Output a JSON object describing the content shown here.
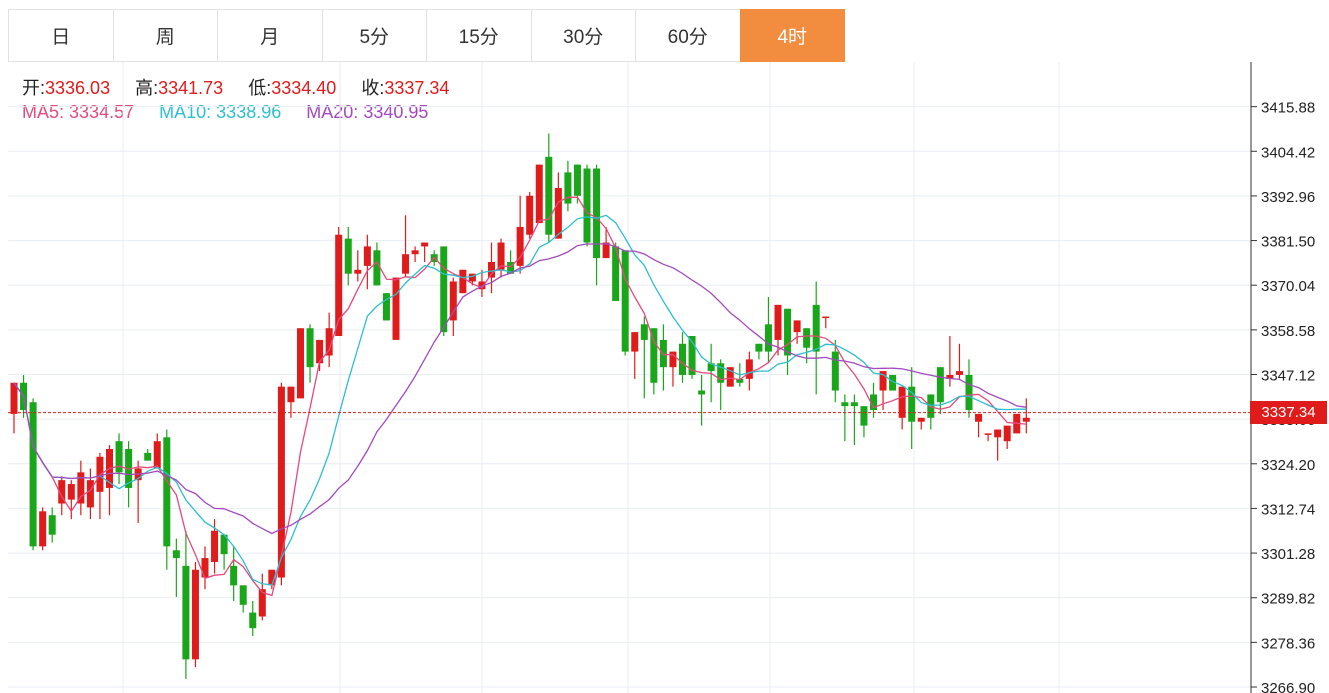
{
  "tabs": [
    {
      "label": "日",
      "active": false
    },
    {
      "label": "周",
      "active": false
    },
    {
      "label": "月",
      "active": false
    },
    {
      "label": "5分",
      "active": false
    },
    {
      "label": "15分",
      "active": false
    },
    {
      "label": "30分",
      "active": false
    },
    {
      "label": "60分",
      "active": false
    },
    {
      "label": "4时",
      "active": true
    }
  ],
  "ohlc": {
    "open_label": "开:",
    "open": "3336.03",
    "high_label": "高:",
    "high": "3341.73",
    "low_label": "低:",
    "low": "3334.40",
    "close_label": "收:",
    "close": "3337.34"
  },
  "ma": {
    "ma5_label": "MA5:",
    "ma5": "3334.57",
    "ma10_label": "MA10:",
    "ma10": "3338.96",
    "ma20_label": "MA20:",
    "ma20": "3340.95"
  },
  "current_price": "3337.34",
  "colors": {
    "up": "#e01b1b",
    "down": "#1aa61a",
    "ma5": "#e5497e",
    "ma10": "#2bbfcf",
    "ma20": "#a349bf",
    "active_tab": "#f28c3f"
  },
  "chart_data": {
    "type": "candlestick",
    "ylim": [
      3266.9,
      3427.34
    ],
    "yticks": [
      "3415.88",
      "3404.42",
      "3392.96",
      "3381.50",
      "3370.04",
      "3358.58",
      "3347.12",
      "3335.66",
      "3324.20",
      "3312.74",
      "3301.28",
      "3289.82",
      "3278.36",
      "3266.90"
    ],
    "current_price": 3337.34,
    "candles": [
      [
        3337,
        3345,
        3333,
        3332
      ],
      [
        3345,
        3338,
        3347,
        3336
      ],
      [
        3340,
        3303,
        3341,
        3302
      ],
      [
        3303,
        3312,
        3302,
        3313
      ],
      [
        3311,
        3306,
        3304,
        3313
      ],
      [
        3314,
        3320,
        3311,
        3321
      ],
      [
        3315,
        3319,
        3310,
        3320
      ],
      [
        3314,
        3322,
        3311,
        3325
      ],
      [
        3313,
        3320,
        3310,
        3323
      ],
      [
        3317,
        3326,
        3310,
        3327
      ],
      [
        3318,
        3328,
        3311,
        3329
      ],
      [
        3330,
        3322,
        3319,
        3332
      ],
      [
        3328,
        3318,
        3313,
        3330
      ],
      [
        3320,
        3323,
        3309,
        3325
      ],
      [
        3327,
        3325,
        3327,
        3328
      ],
      [
        3323,
        3330,
        3325,
        3332
      ],
      [
        3331,
        3303,
        3333,
        3297
      ],
      [
        3302,
        3300,
        3305,
        3290
      ],
      [
        3298,
        3274,
        3307,
        3269
      ],
      [
        3274,
        3297,
        3272,
        3299
      ],
      [
        3295,
        3300,
        3292,
        3303
      ],
      [
        3299,
        3307,
        3296,
        3310
      ],
      [
        3306,
        3301,
        3304,
        3297
      ],
      [
        3298,
        3293,
        3303,
        3289
      ],
      [
        3293,
        3288,
        3290,
        3286
      ],
      [
        3286,
        3282,
        3289,
        3280
      ],
      [
        3285,
        3292,
        3284,
        3296
      ],
      [
        3293,
        3297,
        3292,
        3297
      ],
      [
        3295,
        3344,
        3293,
        3345
      ],
      [
        3340,
        3344,
        3341,
        3336
      ],
      [
        3341,
        3359,
        3342,
        3359
      ],
      [
        3359,
        3349,
        3360,
        3345
      ],
      [
        3350,
        3356,
        3348,
        3355
      ],
      [
        3352,
        3359,
        3349,
        3363
      ],
      [
        3357,
        3383,
        3357,
        3385
      ],
      [
        3382,
        3373,
        3385,
        3370
      ],
      [
        3373,
        3374,
        3379,
        3371
      ],
      [
        3375,
        3380,
        3369,
        3383
      ],
      [
        3379,
        3370,
        3376,
        3381
      ],
      [
        3368,
        3361,
        3366,
        3361
      ],
      [
        3356,
        3372,
        3357,
        3369
      ],
      [
        3373,
        3378,
        3372,
        3388
      ],
      [
        3378,
        3379,
        3380,
        3376
      ],
      [
        3380,
        3381,
        3380,
        3376
      ],
      [
        3378,
        3376,
        3379,
        3375
      ],
      [
        3380,
        3358,
        3380,
        3357
      ],
      [
        3361,
        3371,
        3357,
        3372
      ],
      [
        3368,
        3374,
        3370,
        3368
      ],
      [
        3371,
        3373,
        3372,
        3370
      ],
      [
        3369,
        3371,
        3367,
        3374
      ],
      [
        3372,
        3376,
        3368,
        3381
      ],
      [
        3374,
        3381,
        3372,
        3382
      ],
      [
        3376,
        3373,
        3379,
        3375
      ],
      [
        3375,
        3385,
        3373,
        3393
      ],
      [
        3383,
        3393,
        3382,
        3394
      ],
      [
        3386,
        3401,
        3386,
        3401
      ],
      [
        3403,
        3383,
        3409,
        3381
      ],
      [
        3382,
        3395,
        3383,
        3399
      ],
      [
        3399,
        3391,
        3389,
        3402
      ],
      [
        3401,
        3393,
        3396,
        3391
      ],
      [
        3400,
        3381,
        3401,
        3380
      ],
      [
        3400,
        3377,
        3401,
        3370
      ],
      [
        3377,
        3381,
        3377,
        3385
      ],
      [
        3380,
        3366,
        3381,
        3368
      ],
      [
        3379,
        3353,
        3379,
        3352
      ],
      [
        3353,
        3358,
        3353,
        3346
      ],
      [
        3360,
        3356,
        3362,
        3341
      ],
      [
        3359,
        3345,
        3357,
        3342
      ],
      [
        3356,
        3349,
        3360,
        3343
      ],
      [
        3349,
        3353,
        3344,
        3344
      ],
      [
        3355,
        3347,
        3358,
        3345
      ],
      [
        3357,
        3347,
        3355,
        3346
      ],
      [
        3343,
        3342,
        3347,
        3334
      ],
      [
        3350,
        3348,
        3355,
        3340
      ],
      [
        3350,
        3345,
        3351,
        3338
      ],
      [
        3344,
        3349,
        3345,
        3347
      ],
      [
        3346,
        3345,
        3350,
        3344
      ],
      [
        3346,
        3351,
        3343,
        3353
      ],
      [
        3355,
        3353,
        3352,
        3351
      ],
      [
        3360,
        3353,
        3367,
        3350
      ],
      [
        3356,
        3365,
        3352,
        3361
      ],
      [
        3364,
        3352,
        3362,
        3347
      ],
      [
        3358,
        3361,
        3358,
        3355
      ],
      [
        3359,
        3354,
        3357,
        3350
      ],
      [
        3365,
        3353,
        3371,
        3342
      ],
      [
        3362,
        3362,
        3359,
        3360
      ],
      [
        3353,
        3343,
        3356,
        3340
      ],
      [
        3340,
        3339,
        3342,
        3330
      ],
      [
        3340,
        3339,
        3342,
        3329
      ],
      [
        3339,
        3334,
        3337,
        3331
      ],
      [
        3342,
        3338,
        3345,
        3336
      ],
      [
        3343,
        3348,
        3345,
        3338
      ],
      [
        3347,
        3343,
        3346,
        3344
      ],
      [
        3336,
        3344,
        3340,
        3333
      ],
      [
        3344,
        3335,
        3349,
        3328
      ],
      [
        3335,
        3336,
        3335,
        3333
      ],
      [
        3342,
        3336,
        3333,
        3340
      ],
      [
        3349,
        3340,
        3337,
        3338
      ],
      [
        3346,
        3347,
        3357,
        3344
      ],
      [
        3347,
        3348,
        3355,
        3346
      ],
      [
        3347,
        3338,
        3351,
        3336
      ],
      [
        3335,
        3337,
        3335,
        3331
      ],
      [
        3332,
        3332,
        3330,
        3330
      ],
      [
        3331,
        3333,
        3331,
        3325
      ],
      [
        3330,
        3334,
        3328,
        3333
      ],
      [
        3332,
        3337,
        3334,
        3332
      ],
      [
        3335,
        3336,
        3341,
        3332
      ]
    ]
  }
}
